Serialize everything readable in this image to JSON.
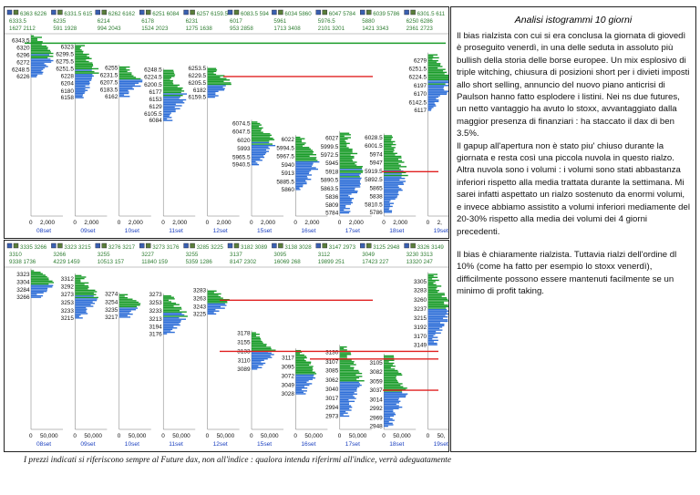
{
  "analysis": {
    "title": "Analisi istogrammi 10 giorni",
    "paragraph1": "Il bias rialzista con cui si era conclusa la giornata di giovedì è proseguito venerdì, in una delle seduta in assoluto più bullish della storia delle borse europee. Un mix esplosivo di triple witching, chiusura di posizioni short per i divieti imposti allo short selling, annuncio del nuovo piano anticrisi di Paulson hanno fatto esplodere i listini. Nei ns due futures, un netto vantaggio ha avuto lo stoxx, avvantaggiato dalla maggior presenza di finanziari : ha staccato il dax di ben 3.5%.",
    "paragraph2": "Il gapup all'apertura non è stato piu' chiuso durante la giornata e resta così una piccola nuvola in questo rialzo. Altra nuvola sono i volumi : i volumi sono stati abbastanza inferiori rispetto alla media trattata durante la settimana. Mi sarei infatti aspettato un rialzo sostenuto da enormi volumi, e invece abbiamo assistito a volumi inferiori mediamente del 20-30% rispetto alla media dei volumi dei 4 giorni precedenti.",
    "paragraph3": "Il bias è chiaramente rialzista. Tuttavia rialzi dell'ordine dl 10% (come ha fatto per esempio lo stoxx venerdì), difficilmente possono essere mantenuti facilmente se un minimo di profit taking."
  },
  "footer_note": "I prezzi indicati si riferiscono sempre al Future dax, non all'indice : qualora intenda riferirmi all'indice, verrà adeguatamente segnalato.",
  "colors": {
    "volume_up": "#1a9c2a",
    "volume_down": "#2f6fd8",
    "header_text": "#2e7d32",
    "level_line": "#e02020",
    "day_label": "#1a3fbf"
  },
  "chart_data": [
    {
      "type": "bar",
      "orientation": "horizontal",
      "description_panel": "top",
      "x_tick_labels": [
        "0",
        "2,000"
      ],
      "last_x_tick_label": "0",
      "days": [
        {
          "label": "08set",
          "header": [
            "6363 6226",
            "6333.5",
            "1627 2112"
          ],
          "price_labels": [
            "6343.5",
            "6320",
            "6296",
            "6272",
            "6248.5",
            "6226"
          ],
          "range": [
            6226,
            6363
          ]
        },
        {
          "label": "09set",
          "header": [
            "6331.5 615",
            "6235",
            "591 1928"
          ],
          "price_labels": [
            "6323",
            "6299.5",
            "6275.5",
            "6251.5",
            "6228",
            "6204",
            "6180",
            "6158"
          ],
          "range": [
            6158,
            6331.5
          ]
        },
        {
          "label": "10set",
          "header": [
            "6262 6162",
            "6214",
            "994 2043"
          ],
          "price_labels": [
            "6255",
            "6231.5",
            "6207.5",
            "6183.5",
            "6162"
          ],
          "range": [
            6162,
            6262
          ]
        },
        {
          "label": "11set",
          "header": [
            "6251 6084",
            "6178",
            "1524 2023"
          ],
          "price_labels": [
            "6248.5",
            "6224.5",
            "6200.5",
            "6177",
            "6153",
            "6129",
            "6105.5",
            "6084"
          ],
          "range": [
            6084,
            6251
          ]
        },
        {
          "label": "12set",
          "header": [
            "6257 6159.5",
            "6231",
            "1275 1638"
          ],
          "price_labels": [
            "6253.5",
            "6229.5",
            "6205.5",
            "6182",
            "6159.5"
          ],
          "range": [
            6159.5,
            6257
          ]
        },
        {
          "label": "15set",
          "header": [
            "6083.5 594",
            "6017",
            "953 2858"
          ],
          "price_labels": [
            "6074.5",
            "6047.5",
            "6020",
            "5993",
            "5965.5",
            "5940.5"
          ],
          "range": [
            5940.5,
            6083.5
          ]
        },
        {
          "label": "16set",
          "header": [
            "6034 5860",
            "5961",
            "1713 3408"
          ],
          "price_labels": [
            "6022",
            "5994.5",
            "5967.5",
            "5940",
            "5913",
            "5885.5",
            "5860"
          ],
          "range": [
            5860,
            6034
          ]
        },
        {
          "label": "17set",
          "header": [
            "6047 5784",
            "5976.5",
            "2101 3201"
          ],
          "price_labels": [
            "6027",
            "5999.5",
            "5972.5",
            "5945",
            "5918",
            "5890.5",
            "5863.5",
            "5836",
            "5809",
            "5784"
          ],
          "range": [
            5784,
            6047
          ]
        },
        {
          "label": "18set",
          "header": [
            "6039 5786",
            "5880",
            "1421 3343"
          ],
          "price_labels": [
            "6028.5",
            "6001.5",
            "5974",
            "5947",
            "5919.5",
            "5892.5",
            "5865",
            "5838",
            "5810.5",
            "5786"
          ],
          "range": [
            5786,
            6039
          ]
        },
        {
          "label": "19set",
          "header": [
            "6301.5 611",
            "6250 6286",
            "2361 2723"
          ],
          "price_labels": [
            "6279",
            "6251.5",
            "6224.5",
            "6197",
            "6170",
            "6142.5",
            "6117"
          ],
          "range": [
            6117,
            6301.5
          ]
        }
      ],
      "level_lines": [
        6335,
        6227,
        5918
      ]
    },
    {
      "type": "bar",
      "orientation": "horizontal",
      "description_panel": "bottom",
      "x_tick_labels": [
        "0",
        "50,000"
      ],
      "last_x_tick_label": "0",
      "days": [
        {
          "label": "08set",
          "header": [
            "3335 3266",
            "3310",
            "9338 1736"
          ],
          "price_labels": [
            "3323",
            "3304",
            "3284",
            "3266"
          ],
          "range": [
            3266,
            3335
          ]
        },
        {
          "label": "09set",
          "header": [
            "3323 3215",
            "3266",
            "4229 1459"
          ],
          "price_labels": [
            "3312",
            "3292",
            "3273",
            "3253",
            "3233",
            "3215"
          ],
          "range": [
            3215,
            3323
          ]
        },
        {
          "label": "10set",
          "header": [
            "3276 3217",
            "3255",
            "10513 157"
          ],
          "price_labels": [
            "3274",
            "3254",
            "3235",
            "3217"
          ],
          "range": [
            3217,
            3276
          ]
        },
        {
          "label": "11set",
          "header": [
            "3273 3176",
            "3227",
            "11840 159"
          ],
          "price_labels": [
            "3273",
            "3253",
            "3233",
            "3213",
            "3194",
            "3176"
          ],
          "range": [
            3176,
            3273
          ]
        },
        {
          "label": "12set",
          "header": [
            "3285 3225",
            "3255",
            "5359 1286"
          ],
          "price_labels": [
            "3283",
            "3263",
            "3243",
            "3225"
          ],
          "range": [
            3225,
            3285
          ]
        },
        {
          "label": "15set",
          "header": [
            "3182 3089",
            "3137",
            "8147 2302"
          ],
          "price_labels": [
            "3178",
            "3155",
            "3133",
            "3110",
            "3089"
          ],
          "range": [
            3089,
            3182
          ]
        },
        {
          "label": "16set",
          "header": [
            "3138 3028",
            "3095",
            "16069 268"
          ],
          "price_labels": [
            "3117",
            "3095",
            "3072",
            "3049",
            "3028"
          ],
          "range": [
            3028,
            3138
          ]
        },
        {
          "label": "17set",
          "header": [
            "3147 2973",
            "3112",
            "19899 251"
          ],
          "price_labels": [
            "3130",
            "3107",
            "3085",
            "3062",
            "3040",
            "3017",
            "2994",
            "2973"
          ],
          "range": [
            2973,
            3147
          ]
        },
        {
          "label": "18set",
          "header": [
            "3125 2948",
            "3049",
            "17423 227"
          ],
          "price_labels": [
            "3105",
            "3082",
            "3059",
            "3037",
            "3014",
            "2992",
            "2969",
            "2948"
          ],
          "range": [
            2948,
            3125
          ]
        },
        {
          "label": "19set",
          "header": [
            "3326 3149",
            "3230 3313",
            "13320 247"
          ],
          "price_labels": [
            "3305",
            "3283",
            "3260",
            "3237",
            "3215",
            "3192",
            "3170",
            "3149"
          ],
          "range": [
            3149,
            3326
          ]
        }
      ],
      "level_lines": [
        3259,
        3133,
        3114,
        3037
      ]
    }
  ]
}
